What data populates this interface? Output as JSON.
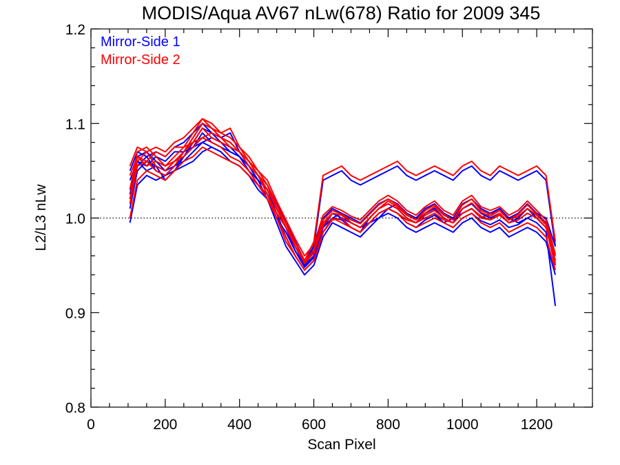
{
  "chart_data": {
    "type": "line",
    "title": "MODIS/Aqua AV67 nLw(678) Ratio for 2009 345",
    "xlabel": "Scan Pixel",
    "ylabel": "L2/L3 nLw",
    "xlim": [
      0,
      1350
    ],
    "ylim": [
      0.8,
      1.2
    ],
    "x_ticks": [
      "0",
      "200",
      "400",
      "600",
      "800",
      "1000",
      "1200"
    ],
    "y_ticks": [
      "0.8",
      "0.9",
      "1.0",
      "1.1",
      "1.2"
    ],
    "reference_line": {
      "y": 1.0,
      "style": "dotted"
    },
    "grid": false,
    "legend_position": "top-left",
    "x": [
      105,
      125,
      150,
      175,
      200,
      225,
      250,
      275,
      300,
      325,
      350,
      375,
      400,
      425,
      450,
      475,
      500,
      525,
      550,
      575,
      600,
      625,
      650,
      675,
      700,
      725,
      750,
      775,
      800,
      825,
      850,
      875,
      900,
      925,
      950,
      975,
      1000,
      1025,
      1050,
      1075,
      1100,
      1125,
      1150,
      1175,
      1200,
      1225,
      1250
    ],
    "series": [
      {
        "name": "Mirror-Side 1",
        "color": "#0000ff",
        "lines": [
          [
            0.995,
            1.035,
            1.045,
            1.04,
            1.045,
            1.05,
            1.055,
            1.06,
            1.07,
            1.075,
            1.07,
            1.06,
            1.055,
            1.045,
            1.035,
            1.025,
            1.005,
            0.98,
            0.96,
            0.945,
            0.955,
            0.985,
            1.0,
            1.005,
            0.995,
            0.99,
            0.995,
            1.0,
            1.01,
            1.015,
            1.005,
            1.0,
            1.0,
            1.005,
            0.995,
            1.0,
            1.005,
            1.01,
            1.0,
            1.005,
            1.01,
            1.0,
            0.995,
            1.0,
            1.005,
            1.0,
            0.97
          ],
          [
            1.01,
            1.05,
            1.06,
            1.055,
            1.04,
            1.05,
            1.065,
            1.075,
            1.09,
            1.08,
            1.075,
            1.07,
            1.065,
            1.05,
            1.04,
            1.03,
            1.01,
            0.99,
            0.97,
            0.95,
            0.965,
            0.99,
            1.005,
            1.0,
            0.99,
            0.985,
            1.0,
            1.01,
            1.015,
            1.01,
            1.0,
            0.995,
            1.005,
            1.01,
            1.0,
            0.995,
            1.01,
            1.015,
            1.005,
            1.0,
            1.005,
            0.995,
            1.0,
            1.01,
            1.0,
            0.99,
            0.955
          ],
          [
            1.03,
            1.065,
            1.07,
            1.06,
            1.05,
            1.06,
            1.07,
            1.085,
            1.1,
            1.095,
            1.085,
            1.08,
            1.07,
            1.055,
            1.045,
            1.035,
            1.015,
            0.995,
            0.975,
            0.955,
            0.97,
            1.0,
            1.01,
            1.005,
            1.0,
            0.995,
            1.005,
            1.015,
            1.02,
            1.015,
            1.005,
            1.0,
            1.01,
            1.015,
            1.005,
            1.0,
            1.015,
            1.02,
            1.01,
            1.005,
            1.01,
            1.0,
            1.005,
            1.015,
            1.005,
            0.995,
            0.96
          ],
          [
            1.02,
            1.055,
            1.065,
            1.05,
            1.045,
            1.055,
            1.065,
            1.08,
            1.095,
            1.09,
            1.08,
            1.075,
            1.065,
            1.05,
            1.04,
            1.03,
            1.01,
            0.99,
            0.97,
            0.95,
            0.96,
            0.995,
            1.005,
            1.0,
            0.995,
            0.99,
            1.0,
            1.01,
            1.015,
            1.01,
            1.0,
            0.995,
            1.005,
            1.01,
            1.0,
            0.995,
            1.01,
            1.015,
            1.005,
            1.0,
            1.005,
            0.995,
            1.0,
            1.01,
            1.0,
            0.99,
            0.95
          ],
          [
            1.04,
            1.06,
            1.055,
            1.065,
            1.06,
            1.07,
            1.07,
            1.075,
            1.08,
            1.085,
            1.08,
            1.07,
            1.065,
            1.055,
            1.04,
            1.02,
            0.995,
            0.97,
            0.955,
            0.94,
            0.95,
            0.98,
            0.995,
            0.99,
            0.985,
            0.98,
            0.99,
            1.0,
            1.005,
            1.0,
            0.99,
            0.985,
            0.99,
            0.995,
            0.99,
            0.985,
            0.995,
            1.0,
            0.99,
            0.985,
            0.99,
            0.98,
            0.985,
            0.99,
            0.985,
            0.975,
            0.94
          ],
          [
            1.05,
            1.07,
            1.065,
            1.07,
            1.065,
            1.075,
            1.08,
            1.09,
            1.1,
            1.09,
            1.085,
            1.09,
            1.07,
            1.06,
            1.045,
            1.03,
            1.005,
            0.99,
            0.965,
            0.95,
            0.97,
            1.04,
            1.045,
            1.05,
            1.04,
            1.035,
            1.04,
            1.045,
            1.05,
            1.055,
            1.045,
            1.04,
            1.045,
            1.05,
            1.045,
            1.04,
            1.05,
            1.055,
            1.045,
            1.04,
            1.05,
            1.045,
            1.04,
            1.045,
            1.05,
            1.04,
            0.97
          ],
          [
            1.025,
            1.06,
            1.05,
            1.055,
            1.05,
            1.055,
            1.06,
            1.07,
            1.08,
            1.075,
            1.07,
            1.06,
            1.055,
            1.045,
            1.03,
            1.02,
            1.0,
            0.985,
            0.965,
            0.948,
            0.958,
            0.99,
            1.0,
            0.998,
            0.99,
            0.985,
            0.995,
            1.005,
            1.01,
            1.005,
            0.995,
            0.99,
            0.998,
            1.003,
            0.995,
            0.99,
            1.0,
            1.005,
            0.997,
            0.993,
            0.998,
            0.99,
            0.993,
            1.0,
            0.995,
            0.985,
            0.907
          ]
        ]
      },
      {
        "name": "Mirror-Side 2",
        "color": "#ff0000",
        "lines": [
          [
            1.0,
            1.04,
            1.05,
            1.045,
            1.04,
            1.05,
            1.06,
            1.065,
            1.075,
            1.07,
            1.065,
            1.06,
            1.055,
            1.045,
            1.035,
            1.02,
            1.0,
            0.98,
            0.96,
            0.945,
            0.955,
            0.985,
            0.998,
            1.0,
            0.99,
            0.985,
            0.995,
            1.005,
            1.01,
            1.005,
            0.998,
            0.995,
            1.0,
            1.005,
            0.998,
            0.995,
            1.005,
            1.01,
            1.0,
            0.998,
            1.005,
            0.995,
            0.998,
            1.005,
            1.0,
            0.99,
            0.96
          ],
          [
            1.015,
            1.055,
            1.06,
            1.05,
            1.045,
            1.055,
            1.07,
            1.08,
            1.095,
            1.085,
            1.08,
            1.075,
            1.07,
            1.055,
            1.045,
            1.03,
            1.01,
            0.99,
            0.97,
            0.952,
            0.963,
            0.992,
            1.005,
            1.003,
            0.995,
            0.99,
            1.0,
            1.01,
            1.018,
            1.012,
            1.003,
            0.998,
            1.005,
            1.012,
            1.003,
            0.998,
            1.01,
            1.016,
            1.006,
            1.002,
            1.008,
            0.998,
            1.002,
            1.01,
            1.003,
            0.993,
            0.955
          ],
          [
            1.03,
            1.07,
            1.075,
            1.065,
            1.055,
            1.065,
            1.075,
            1.09,
            1.105,
            1.1,
            1.09,
            1.085,
            1.075,
            1.06,
            1.05,
            1.04,
            1.018,
            0.998,
            0.978,
            0.96,
            0.972,
            1.003,
            1.012,
            1.008,
            1.002,
            0.998,
            1.008,
            1.018,
            1.024,
            1.018,
            1.008,
            1.003,
            1.012,
            1.018,
            1.008,
            1.003,
            1.018,
            1.024,
            1.012,
            1.008,
            1.012,
            1.003,
            1.008,
            1.018,
            1.008,
            0.998,
            0.962
          ],
          [
            1.02,
            1.06,
            1.07,
            1.055,
            1.05,
            1.06,
            1.07,
            1.085,
            1.1,
            1.095,
            1.085,
            1.08,
            1.07,
            1.055,
            1.045,
            1.035,
            1.014,
            0.994,
            0.974,
            0.955,
            0.966,
            0.998,
            1.008,
            1.004,
            0.998,
            0.994,
            1.004,
            1.014,
            1.02,
            1.014,
            1.004,
            0.998,
            1.008,
            1.014,
            1.004,
            0.998,
            1.014,
            1.02,
            1.008,
            1.004,
            1.008,
            0.998,
            1.004,
            1.014,
            1.004,
            0.994,
            0.95
          ],
          [
            1.045,
            1.065,
            1.06,
            1.07,
            1.065,
            1.075,
            1.075,
            1.08,
            1.085,
            1.09,
            1.085,
            1.075,
            1.07,
            1.06,
            1.045,
            1.025,
            1.0,
            0.975,
            0.96,
            0.945,
            0.955,
            0.985,
            1.0,
            0.995,
            0.99,
            0.985,
            0.995,
            1.005,
            1.01,
            1.005,
            0.995,
            0.99,
            0.995,
            1.0,
            0.995,
            0.99,
            1.0,
            1.005,
            0.995,
            0.99,
            0.995,
            0.985,
            0.99,
            0.995,
            0.99,
            0.98,
            0.945
          ],
          [
            1.055,
            1.075,
            1.07,
            1.075,
            1.07,
            1.08,
            1.085,
            1.095,
            1.105,
            1.095,
            1.09,
            1.095,
            1.075,
            1.065,
            1.05,
            1.035,
            1.01,
            0.995,
            0.97,
            0.955,
            0.975,
            1.045,
            1.05,
            1.055,
            1.045,
            1.04,
            1.045,
            1.05,
            1.055,
            1.06,
            1.05,
            1.045,
            1.05,
            1.055,
            1.05,
            1.045,
            1.055,
            1.06,
            1.05,
            1.045,
            1.055,
            1.05,
            1.045,
            1.05,
            1.055,
            1.045,
            0.975
          ],
          [
            1.03,
            1.065,
            1.055,
            1.06,
            1.055,
            1.06,
            1.065,
            1.075,
            1.085,
            1.08,
            1.075,
            1.065,
            1.06,
            1.05,
            1.035,
            1.025,
            1.005,
            0.99,
            0.97,
            0.953,
            0.963,
            0.995,
            1.005,
            1.003,
            0.995,
            0.99,
            1.0,
            1.01,
            1.015,
            1.01,
            1.0,
            0.995,
            1.003,
            1.008,
            1.0,
            0.995,
            1.005,
            1.01,
            1.002,
            0.998,
            1.003,
            0.995,
            0.998,
            1.005,
            1.0,
            0.99,
            0.952
          ]
        ]
      }
    ]
  }
}
